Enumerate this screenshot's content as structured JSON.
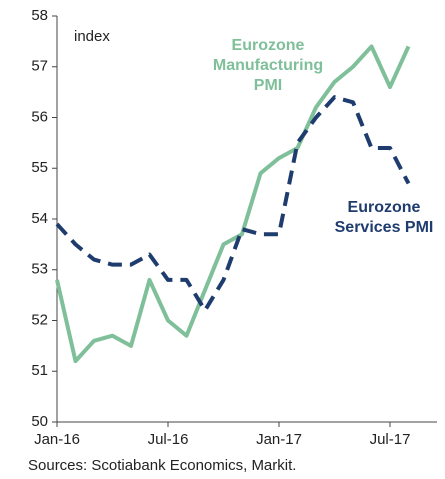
{
  "chart_data": {
    "type": "line",
    "categories": [
      "Jan-16",
      null,
      null,
      null,
      null,
      null,
      "Jul-16",
      null,
      null,
      null,
      null,
      null,
      "Jan-17",
      null,
      null,
      null,
      null,
      null,
      "Jul-17",
      null
    ],
    "series": [
      {
        "name": "Eurozone Manufacturing PMI",
        "label_lines": [
          "Eurozone",
          "Manufacturing",
          "PMI"
        ],
        "color": "#7fbf99",
        "dash": false,
        "values": [
          52.8,
          51.2,
          51.6,
          51.7,
          51.5,
          52.8,
          52.0,
          51.7,
          52.6,
          53.5,
          53.7,
          54.9,
          55.2,
          55.4,
          56.2,
          56.7,
          57.0,
          57.4,
          56.6,
          57.4
        ]
      },
      {
        "name": "Eurozone Services PMI",
        "label_lines": [
          "Eurozone",
          "Services PMI"
        ],
        "color": "#1f3c6e",
        "dash": true,
        "values": [
          53.9,
          53.5,
          53.2,
          53.1,
          53.1,
          53.3,
          52.8,
          52.8,
          52.2,
          52.8,
          53.8,
          53.7,
          53.7,
          55.5,
          56.0,
          56.4,
          56.3,
          55.4,
          55.4,
          54.7
        ]
      }
    ],
    "y_unit_label": "index",
    "source": "Sources: Scotiabank Economics, Markit.",
    "ylim": [
      50,
      58
    ],
    "yticks": [
      50,
      51,
      52,
      53,
      54,
      55,
      56,
      57,
      58
    ]
  }
}
